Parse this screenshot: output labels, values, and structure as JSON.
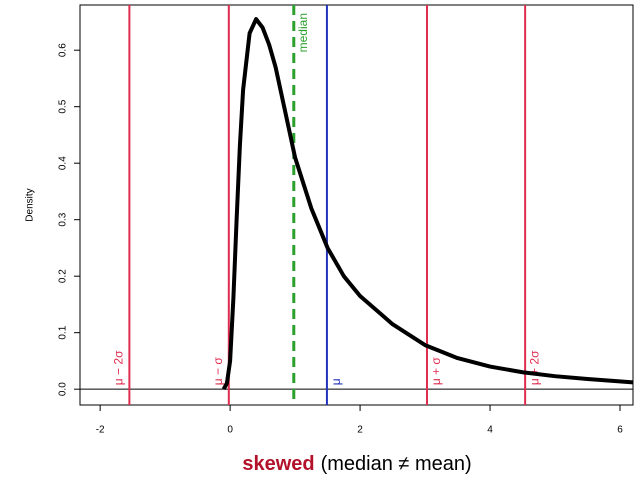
{
  "chart_data": {
    "type": "line",
    "title_highlight": "skewed",
    "title": "(median ≠ mean)",
    "title_highlight_color": "#b3112a",
    "ylabel": "Density",
    "xlim": [
      -2.31,
      6.2
    ],
    "ylim": [
      -0.028,
      0.68
    ],
    "xticks": [
      -2,
      0,
      2,
      4,
      6
    ],
    "yticks": [
      {
        "value": 0,
        "label": "0.0"
      },
      0.1,
      0.2,
      0.3,
      0.4,
      0.5,
      0.6
    ],
    "hline": 0,
    "x": [
      -0.1,
      -0.05,
      0,
      0.05,
      0.1,
      0.15,
      0.2,
      0.3,
      0.4,
      0.5,
      0.6,
      0.7,
      0.85,
      1.0,
      1.25,
      1.5,
      1.75,
      2.0,
      2.5,
      3.0,
      3.5,
      4.0,
      4.5,
      5.0,
      5.5,
      6.2
    ],
    "series": [
      {
        "color": "#000000",
        "values": [
          0,
          0.01,
          0.05,
          0.16,
          0.3,
          0.43,
          0.53,
          0.63,
          0.655,
          0.64,
          0.61,
          0.57,
          0.49,
          0.41,
          0.32,
          0.25,
          0.2,
          0.165,
          0.115,
          0.078,
          0.055,
          0.04,
          0.03,
          0.023,
          0.018,
          0.012
        ]
      }
    ],
    "vlines": [
      {
        "label": "μ − 2σ",
        "value": -1.55,
        "color": "#df2d4f",
        "dashed": false,
        "label_side": "left",
        "label_pos": "bottom"
      },
      {
        "label": "μ − σ",
        "value": -0.02,
        "color": "#df2d4f",
        "dashed": false,
        "label_side": "left",
        "label_pos": "bottom"
      },
      {
        "label": "median",
        "value": 0.98,
        "color": "#2ca02c",
        "dashed": true,
        "label_side": "right",
        "label_pos": "top"
      },
      {
        "label": "μ",
        "value": 1.49,
        "color": "#2233bb",
        "dashed": false,
        "label_side": "right",
        "label_pos": "bottom"
      },
      {
        "label": "μ + σ",
        "value": 3.03,
        "color": "#df2d4f",
        "dashed": false,
        "label_side": "right",
        "label_pos": "bottom"
      },
      {
        "label": "μ + 2σ",
        "value": 4.54,
        "color": "#df2d4f",
        "dashed": false,
        "label_side": "right",
        "label_pos": "bottom"
      }
    ]
  }
}
